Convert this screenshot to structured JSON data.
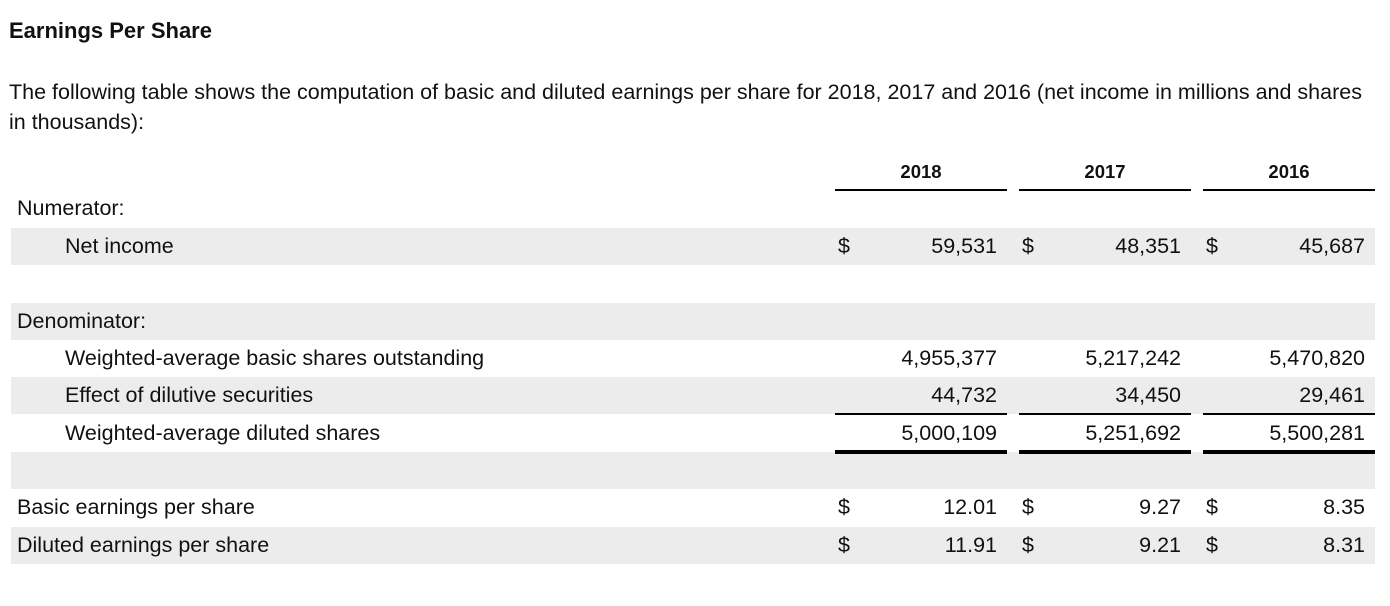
{
  "heading": "Earnings Per Share",
  "intro": "The following table shows the computation of basic and diluted earnings per share for 2018, 2017 and 2016 (net income in millions and shares in thousands):",
  "columns": [
    "2018",
    "2017",
    "2016"
  ],
  "currency_symbol": "$",
  "rows": {
    "numerator_label": "Numerator:",
    "net_income": {
      "label": "Net income",
      "values": [
        "59,531",
        "48,351",
        "45,687"
      ]
    },
    "denominator_label": "Denominator:",
    "basic_shares": {
      "label": "Weighted-average basic shares outstanding",
      "values": [
        "4,955,377",
        "5,217,242",
        "5,470,820"
      ]
    },
    "dilutive_effect": {
      "label": "Effect of dilutive securities",
      "values": [
        "44,732",
        "34,450",
        "29,461"
      ]
    },
    "diluted_shares": {
      "label": "Weighted-average diluted shares",
      "values": [
        "5,000,109",
        "5,251,692",
        "5,500,281"
      ]
    },
    "basic_eps": {
      "label": "Basic earnings per share",
      "values": [
        "12.01",
        "9.27",
        "8.35"
      ]
    },
    "diluted_eps": {
      "label": "Diluted earnings per share",
      "values": [
        "11.91",
        "9.21",
        "8.31"
      ]
    }
  },
  "colors": {
    "row_shade": "#ececec",
    "rule": "#000000",
    "text": "#111111"
  }
}
